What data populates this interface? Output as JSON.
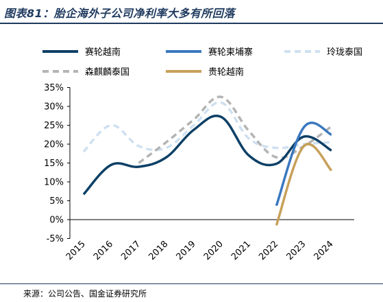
{
  "title": "图表81：胎企海外子公司净利率大多有所回落",
  "source": "来源：公司公告、国金证券研究所",
  "chart_data": {
    "type": "line",
    "x": [
      2015,
      2016,
      2017,
      2018,
      2019,
      2020,
      2021,
      2022,
      2023,
      2024
    ],
    "ylim": [
      -0.05,
      0.35
    ],
    "yticks": [
      -0.05,
      0,
      0.05,
      0.1,
      0.15,
      0.2,
      0.25,
      0.3,
      0.35
    ],
    "ytick_labels": [
      "-5%",
      "0%",
      "5%",
      "10%",
      "15%",
      "20%",
      "25%",
      "30%",
      "35%"
    ],
    "xtick_labels": [
      "2015",
      "2016",
      "2017",
      "2018",
      "2019",
      "2020",
      "2021",
      "2022",
      "2023",
      "2024"
    ],
    "legend_position": "top",
    "series": [
      {
        "name": "赛轮越南",
        "color": "#0d4066",
        "dash": false,
        "values": [
          0.067,
          0.145,
          0.14,
          0.165,
          0.238,
          0.272,
          0.17,
          0.148,
          0.22,
          0.183
        ]
      },
      {
        "name": "赛轮柬埔寨",
        "color": "#3a78bf",
        "dash": false,
        "values": [
          null,
          null,
          null,
          null,
          null,
          null,
          null,
          0.037,
          0.245,
          0.225
        ]
      },
      {
        "name": "玲珑泰国",
        "color": "#cfe0f0",
        "dash": true,
        "values": [
          0.18,
          0.25,
          0.195,
          0.19,
          0.25,
          0.31,
          0.215,
          0.19,
          0.2,
          0.205
        ]
      },
      {
        "name": "森麒麟泰国",
        "color": "#b4b4b4",
        "dash": true,
        "values": [
          null,
          null,
          0.15,
          0.205,
          0.265,
          0.325,
          0.235,
          0.165,
          0.195,
          0.247
        ]
      },
      {
        "name": "贵轮越南",
        "color": "#c7a05a",
        "dash": false,
        "values": [
          null,
          null,
          null,
          null,
          null,
          null,
          null,
          -0.015,
          0.195,
          0.13
        ]
      }
    ]
  }
}
